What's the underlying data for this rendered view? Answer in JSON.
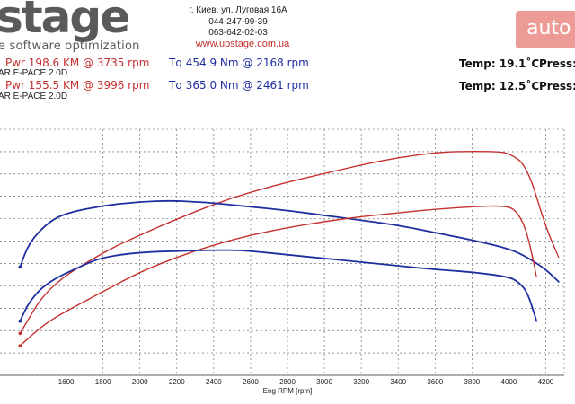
{
  "brand": {
    "logo": "stage",
    "tagline": "e software optimization",
    "address": "г. Киев, ул. Луговая 16А",
    "phone1": "044-247-99-39",
    "phone2": "063-642-02-03",
    "website": "www.upstage.com.ua",
    "watermark": "auto"
  },
  "runs": [
    {
      "power": "Pwr  198.6 KM @ 3735 rpm",
      "torque": "Tq 454.9 Nm @ 2168 rpm",
      "temp": "Temp: 19.1˚C",
      "press": "Press:",
      "car": "AR E-PACE 2.0D"
    },
    {
      "power": "Pwr  155.5 KM @ 3996 rpm",
      "torque": "Tq 365.0 Nm @ 2461 rpm",
      "temp": "Temp: 12.5˚C",
      "press": "Press:",
      "car": "AR E-PACE 2.0D"
    }
  ],
  "colors": {
    "power": "#c4312f",
    "torque": "#1f2f9f",
    "grid": "#555555"
  },
  "chart_data": {
    "type": "line",
    "xlabel": "Eng RPM [rpm]",
    "ylabel": "",
    "xlim": [
      1300,
      4300
    ],
    "xticks": [
      1600,
      1800,
      2000,
      2200,
      2400,
      2600,
      2800,
      3000,
      3200,
      3400,
      3600,
      3800,
      4000,
      4200
    ],
    "grid": true,
    "series": [
      {
        "kind": "power",
        "color": "#c4312f",
        "values": [
          [
            1350,
            0.17
          ],
          [
            1500,
            0.36
          ],
          [
            1800,
            0.5
          ],
          [
            2000,
            0.57
          ],
          [
            2200,
            0.635
          ],
          [
            2400,
            0.695
          ],
          [
            2600,
            0.745
          ],
          [
            2800,
            0.785
          ],
          [
            3000,
            0.82
          ],
          [
            3200,
            0.855
          ],
          [
            3400,
            0.885
          ],
          [
            3600,
            0.905
          ],
          [
            3735,
            0.91
          ],
          [
            3900,
            0.91
          ],
          [
            4000,
            0.905
          ],
          [
            4100,
            0.85
          ],
          [
            4200,
            0.6
          ],
          [
            4270,
            0.48
          ]
        ]
      },
      {
        "kind": "torque",
        "color": "#1f2f9f",
        "values": [
          [
            1350,
            0.44
          ],
          [
            1400,
            0.54
          ],
          [
            1500,
            0.62
          ],
          [
            1600,
            0.66
          ],
          [
            1800,
            0.69
          ],
          [
            2000,
            0.705
          ],
          [
            2168,
            0.71
          ],
          [
            2300,
            0.705
          ],
          [
            2400,
            0.7
          ],
          [
            2600,
            0.685
          ],
          [
            2800,
            0.67
          ],
          [
            3000,
            0.65
          ],
          [
            3200,
            0.63
          ],
          [
            3400,
            0.61
          ],
          [
            3600,
            0.58
          ],
          [
            3800,
            0.55
          ],
          [
            4000,
            0.515
          ],
          [
            4100,
            0.48
          ],
          [
            4200,
            0.43
          ],
          [
            4270,
            0.38
          ]
        ]
      },
      {
        "kind": "power",
        "color": "#c4312f",
        "values": [
          [
            1350,
            0.12
          ],
          [
            1500,
            0.22
          ],
          [
            1700,
            0.3
          ],
          [
            1800,
            0.34
          ],
          [
            2000,
            0.42
          ],
          [
            2200,
            0.48
          ],
          [
            2400,
            0.53
          ],
          [
            2600,
            0.57
          ],
          [
            2800,
            0.6
          ],
          [
            3000,
            0.625
          ],
          [
            3200,
            0.645
          ],
          [
            3400,
            0.66
          ],
          [
            3600,
            0.675
          ],
          [
            3800,
            0.685
          ],
          [
            3996,
            0.69
          ],
          [
            4050,
            0.66
          ],
          [
            4100,
            0.58
          ],
          [
            4150,
            0.4
          ]
        ]
      },
      {
        "kind": "torque",
        "color": "#1f2f9f",
        "values": [
          [
            1350,
            0.22
          ],
          [
            1400,
            0.3
          ],
          [
            1500,
            0.38
          ],
          [
            1700,
            0.45
          ],
          [
            1800,
            0.48
          ],
          [
            2000,
            0.5
          ],
          [
            2200,
            0.505
          ],
          [
            2461,
            0.51
          ],
          [
            2600,
            0.505
          ],
          [
            2800,
            0.49
          ],
          [
            3000,
            0.475
          ],
          [
            3200,
            0.46
          ],
          [
            3400,
            0.445
          ],
          [
            3600,
            0.43
          ],
          [
            3800,
            0.42
          ],
          [
            4000,
            0.4
          ],
          [
            4050,
            0.38
          ],
          [
            4100,
            0.34
          ],
          [
            4150,
            0.22
          ]
        ]
      }
    ]
  }
}
